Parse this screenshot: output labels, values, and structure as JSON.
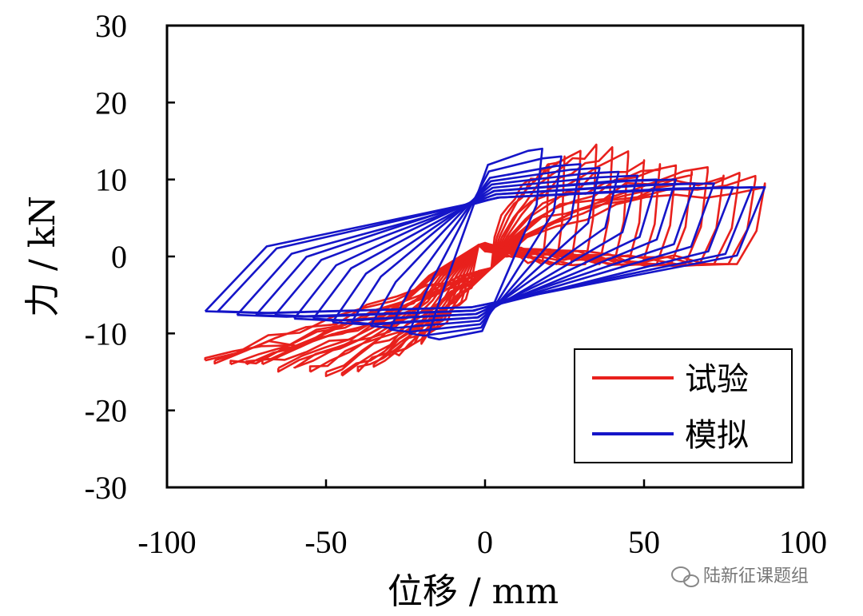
{
  "chart_data": {
    "type": "line",
    "xlabel": "位移 / mm",
    "ylabel": "力 / kN",
    "xlim": [
      -100,
      100
    ],
    "ylim": [
      -30,
      30
    ],
    "x_ticks": [
      -100,
      -50,
      0,
      50,
      100
    ],
    "y_ticks": [
      -30,
      -20,
      -10,
      0,
      10,
      20,
      30
    ],
    "x_tick_labels": [
      "-100",
      "-50",
      "0",
      "50",
      "100"
    ],
    "y_tick_labels": [
      "-30",
      "-20",
      "-10",
      "0",
      "10",
      "20",
      "30"
    ],
    "grid": false,
    "legend_position": "bottom-right",
    "series": [
      {
        "name": "试验",
        "color": "#e8201c",
        "type": "hysteresis",
        "amplitudes": [
          20,
          25,
          30,
          35,
          40,
          45,
          50,
          55,
          60,
          65,
          70,
          75,
          80,
          85,
          88
        ],
        "peak_force_pos": [
          12,
          13,
          13.5,
          14,
          13.5,
          13,
          12.5,
          12,
          11.5,
          11,
          11,
          10.5,
          10.5,
          10,
          9.5
        ],
        "peak_force_neg": [
          -11,
          -12,
          -13,
          -14,
          -15,
          -15.5,
          -15,
          -15,
          -14.5,
          -14.5,
          -14,
          -14,
          -14,
          -13.5,
          -13.5
        ]
      },
      {
        "name": "模拟",
        "color": "#1515c8",
        "type": "hysteresis",
        "amplitudes": [
          18,
          24,
          30,
          36,
          42,
          48,
          54,
          60,
          66,
          72,
          78,
          84,
          88
        ],
        "peak_force_pos": [
          14,
          13,
          12,
          11.5,
          11,
          10.5,
          10,
          10,
          9.5,
          9.5,
          9,
          9,
          9
        ],
        "peak_force_neg": [
          -11,
          -10.5,
          -10,
          -9.5,
          -9,
          -9,
          -8.5,
          -8.5,
          -8,
          -8,
          -8,
          -7.5,
          -7.5
        ]
      }
    ]
  },
  "watermark": {
    "icon": "wechat-icon",
    "text": "陆新征课题组"
  }
}
